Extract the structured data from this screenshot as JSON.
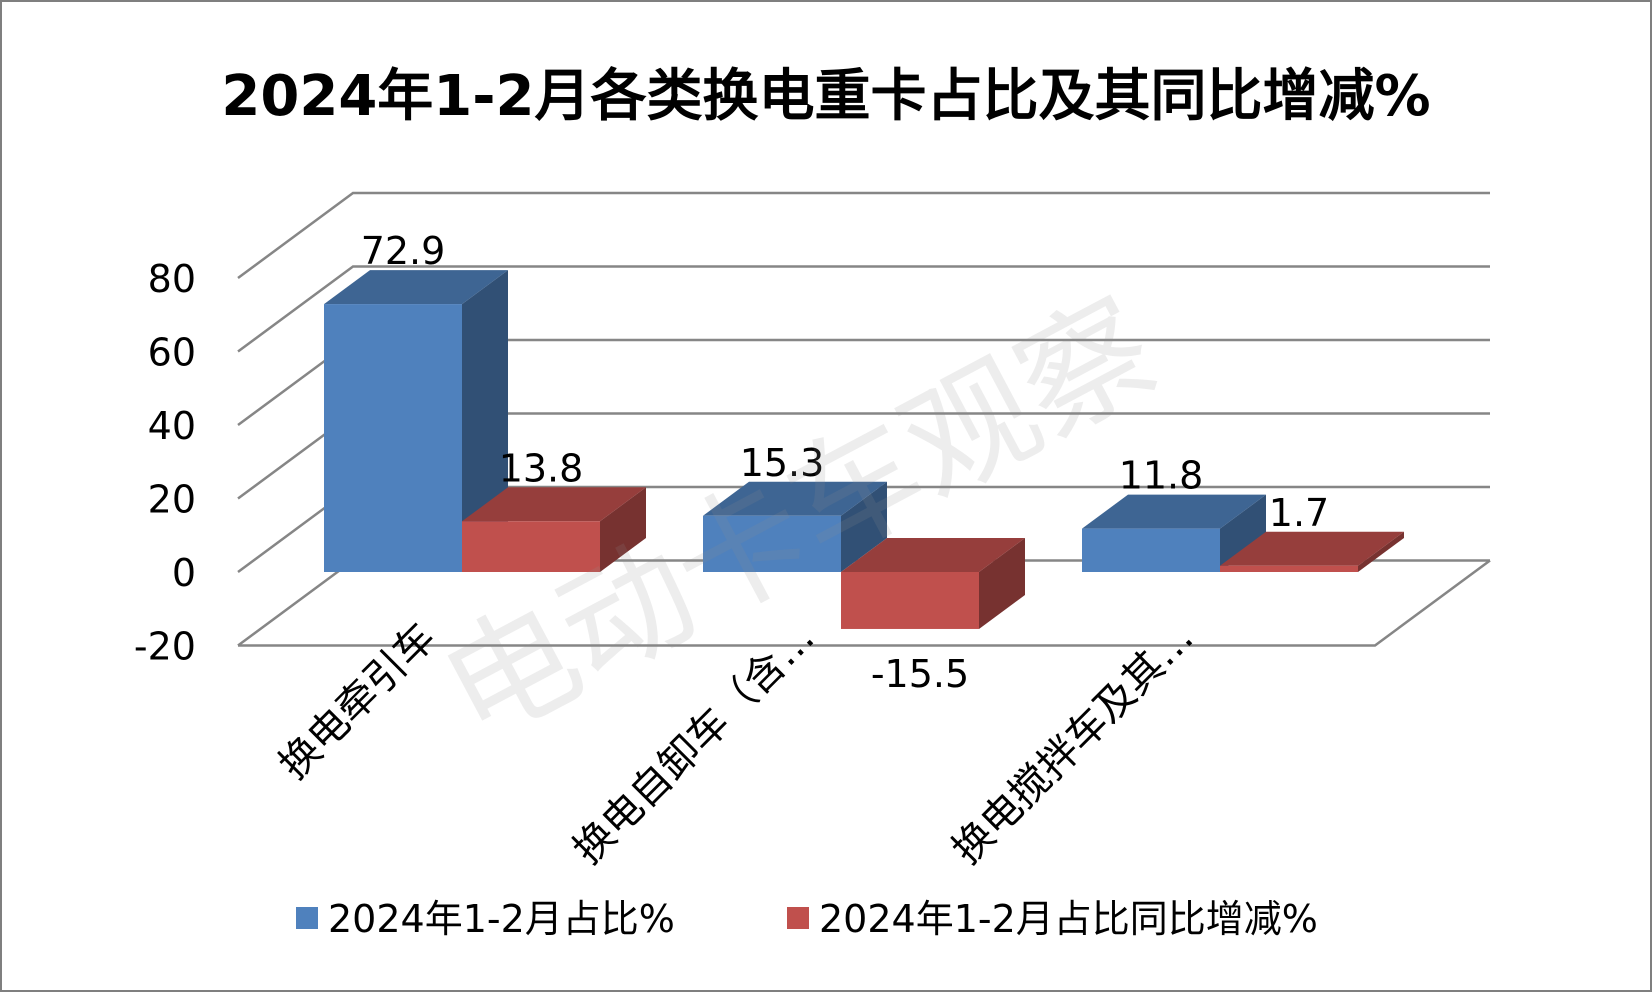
{
  "chart_data": {
    "type": "bar",
    "title": "2024年1-2月各类换电重卡占比及其同比增减%",
    "categories": [
      "换电牵引车",
      "换电自卸车（含…",
      "换电搅拌车及其…"
    ],
    "series": [
      {
        "name": "2024年1-2月占比%",
        "values": [
          72.9,
          15.3,
          11.8
        ],
        "color": "#4F81BD"
      },
      {
        "name": "2024年1-2月占比同比增减%",
        "values": [
          13.8,
          -15.5,
          1.7
        ],
        "color": "#C0504D"
      }
    ],
    "data_labels": [
      "72.9",
      "13.8",
      "15.3",
      "-15.5",
      "11.8",
      "1.7"
    ],
    "y_ticks": [
      "80",
      "60",
      "40",
      "20",
      "0",
      "-20"
    ],
    "ylim": [
      -20,
      80
    ],
    "grid": true,
    "legend_position": "bottom",
    "style": "3d-clustered-column",
    "xlabel": "",
    "ylabel": "",
    "watermark": "电动卡车观察"
  }
}
